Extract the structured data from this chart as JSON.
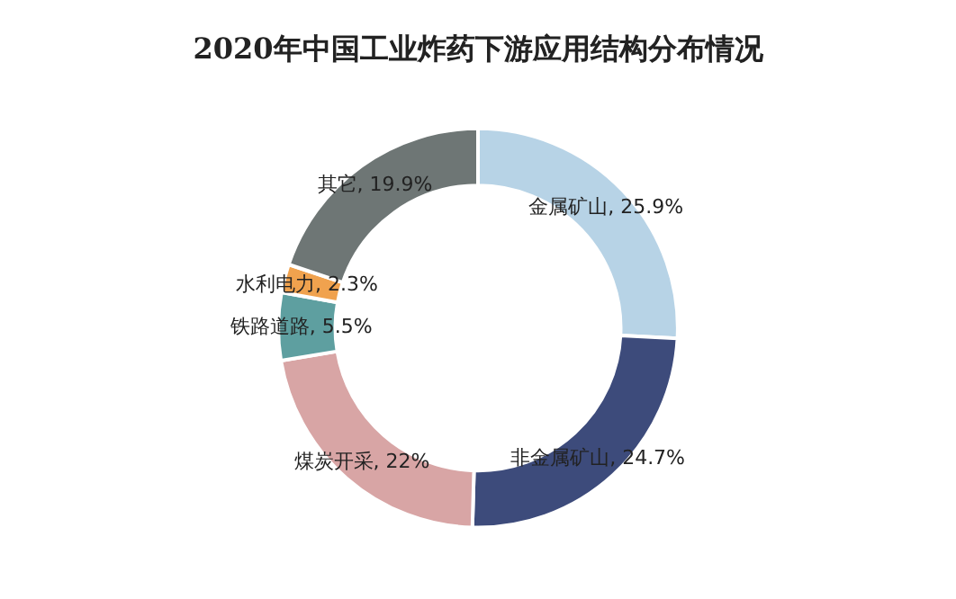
{
  "chart_data": {
    "type": "donut",
    "title": "2020年中国工业炸药下游应用结构分布情况",
    "categories": [
      "金属矿山",
      "非金属矿山",
      "煤炭开采",
      "铁路道路",
      "水利电力",
      "其它"
    ],
    "values": [
      25.9,
      24.7,
      22,
      5.5,
      2.3,
      19.9
    ],
    "value_labels": [
      "25.9%",
      "24.7%",
      "22%",
      "5.5%",
      "2.3%",
      "19.9%"
    ],
    "colors": [
      "#b7d3e6",
      "#3d4b7b",
      "#d8a5a5",
      "#5e9fa0",
      "#f0a24e",
      "#6e7675"
    ],
    "legend": false
  }
}
